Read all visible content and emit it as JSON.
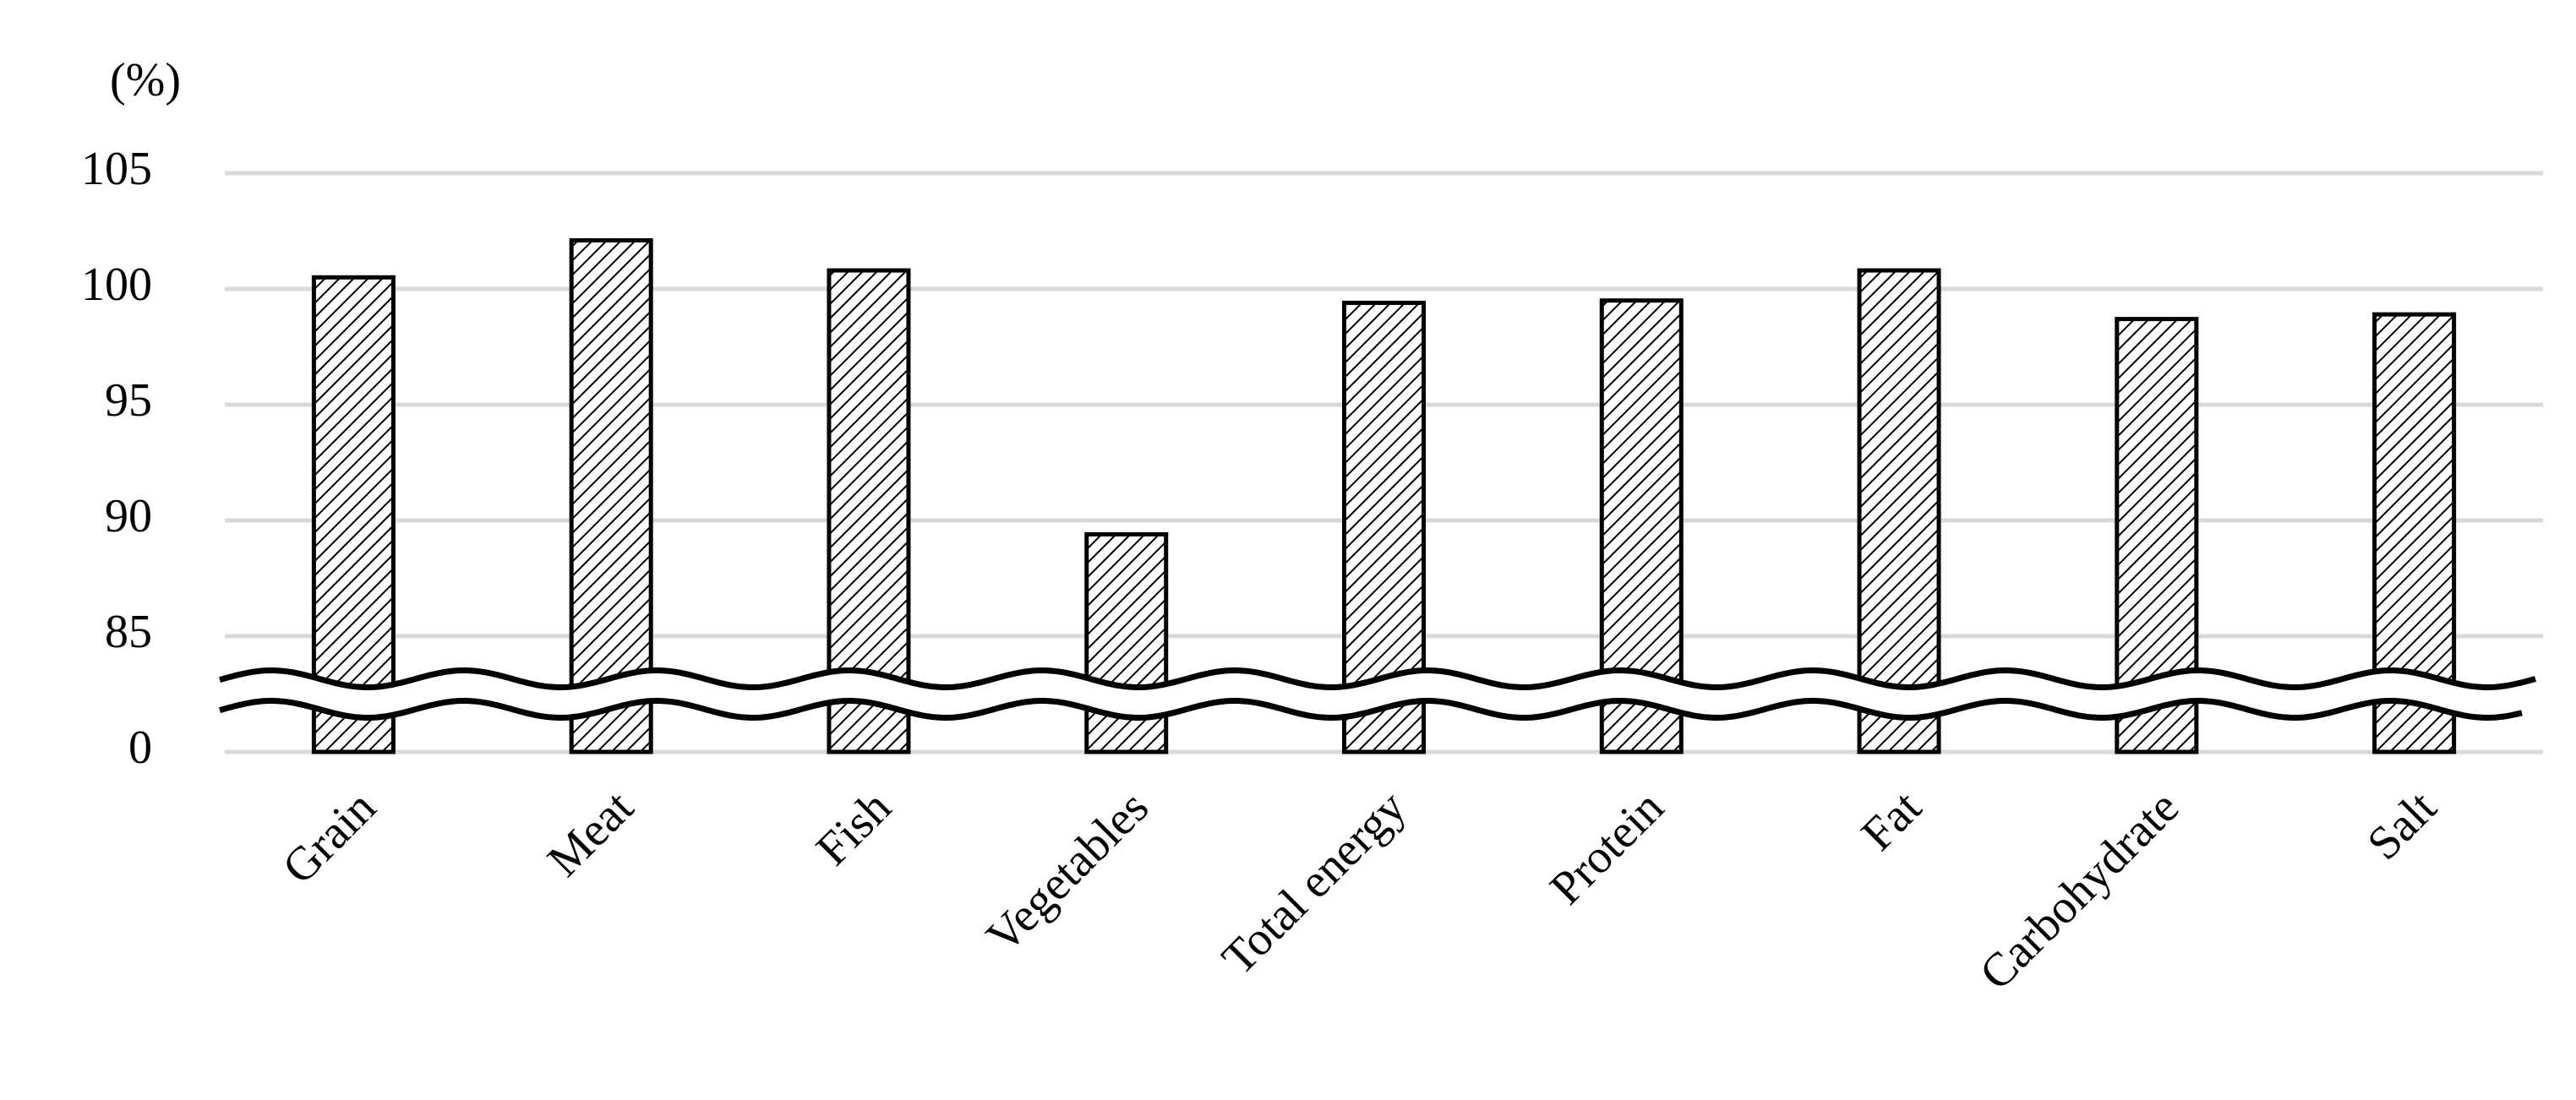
{
  "chart_data": {
    "type": "bar",
    "y_label": "(%)",
    "categories": [
      "Grain",
      "Meat",
      "Fish",
      "Vegetables",
      "Total energy",
      "Protein",
      "Fat",
      "Carbohydrate",
      "Salt"
    ],
    "values": [
      100.5,
      102.1,
      100.8,
      89.4,
      99.4,
      99.5,
      100.8,
      98.7,
      98.9
    ],
    "color": "#000000",
    "ylim": [
      0,
      105
    ],
    "yticks": [
      0,
      85,
      90,
      95,
      100,
      105
    ],
    "grid": true,
    "broken_axis": true
  }
}
